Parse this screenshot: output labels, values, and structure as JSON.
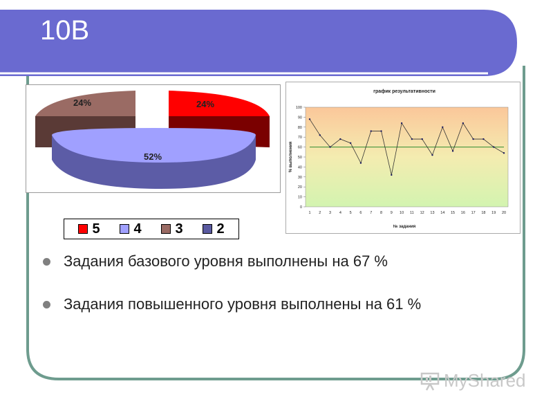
{
  "slide": {
    "title": "10В"
  },
  "colors": {
    "band": "#6a6ad0",
    "frame": "#6e9c8e",
    "red": "#ff0000",
    "lilac": "#a0a0ff",
    "brown": "#9a6b64",
    "navy": "#5a5aa0"
  },
  "bullets": [
    {
      "text": "Задания базового уровня выполнены на  67   %"
    },
    {
      "text": "Задания повышенного уровня выполнены на  61   %"
    }
  ],
  "watermark": {
    "text": "MyShared"
  },
  "chart_data": [
    {
      "type": "pie",
      "title": "",
      "slices": [
        {
          "label": "5",
          "value": 24,
          "color": "#ff0000",
          "display": "24%"
        },
        {
          "label": "4",
          "value": 52,
          "color": "#a0a0ff",
          "display": "52%"
        },
        {
          "label": "3",
          "value": 24,
          "color": "#9a6b64",
          "display": "24%"
        },
        {
          "label": "2",
          "value": 0,
          "color": "#5a5aa0",
          "display": ""
        }
      ],
      "legend": {
        "placement": "bottom",
        "entries": [
          "5",
          "4",
          "3",
          "2"
        ]
      }
    },
    {
      "type": "line",
      "title": "график результативности",
      "xlabel": "№ задания",
      "ylabel": "% выполнения",
      "x": [
        1,
        2,
        3,
        4,
        5,
        6,
        7,
        8,
        9,
        10,
        11,
        12,
        13,
        14,
        15,
        16,
        17,
        18,
        19,
        20
      ],
      "series": [
        {
          "values": [
            88,
            72,
            60,
            68,
            64,
            44,
            76,
            76,
            32,
            84,
            68,
            68,
            52,
            80,
            56,
            84,
            68,
            68,
            60,
            54
          ]
        }
      ],
      "reference_line": 60,
      "ylim": [
        0,
        100
      ],
      "yticks": [
        0,
        10,
        20,
        30,
        40,
        50,
        60,
        70,
        80,
        90,
        100
      ],
      "grid": false
    }
  ]
}
